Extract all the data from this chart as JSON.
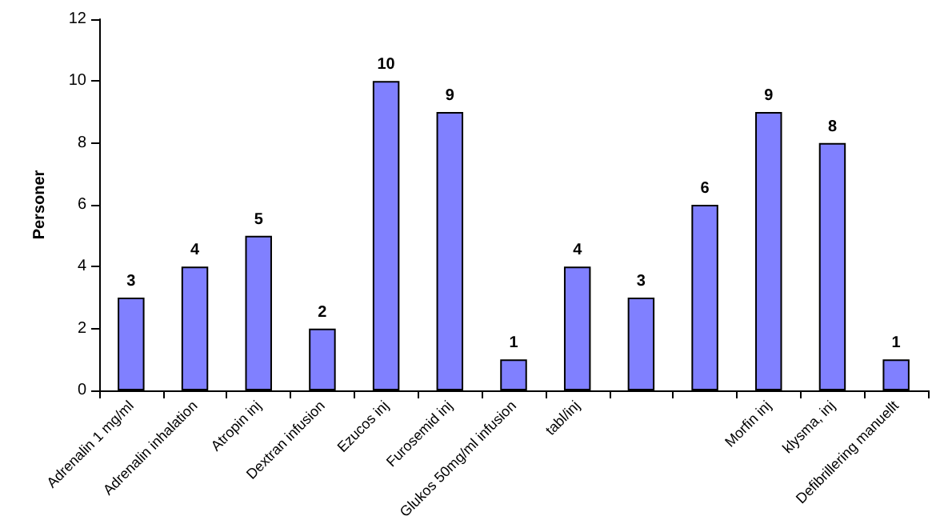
{
  "chart_data": {
    "type": "bar",
    "ylabel": "Personer",
    "categories": [
      "Adrenalin 1 mg/ml",
      "Adrenalin inhalation",
      "Atropin inj",
      "Dextran infusion",
      "Ezucos inj",
      "Furosemid inj",
      "Glukos 50mg/ml infusion",
      "tabl/inj",
      null,
      null,
      "Morfin inj",
      "klysma, inj",
      "Defibrillering manuellt"
    ],
    "values": [
      3,
      4,
      5,
      2,
      10,
      9,
      1,
      4,
      3,
      6,
      9,
      8,
      1
    ],
    "color": "#8080ff",
    "ylim": [
      0,
      12
    ],
    "yticks": [
      0,
      2,
      4,
      6,
      8,
      10,
      12
    ],
    "grid": false,
    "data_labels": true
  }
}
